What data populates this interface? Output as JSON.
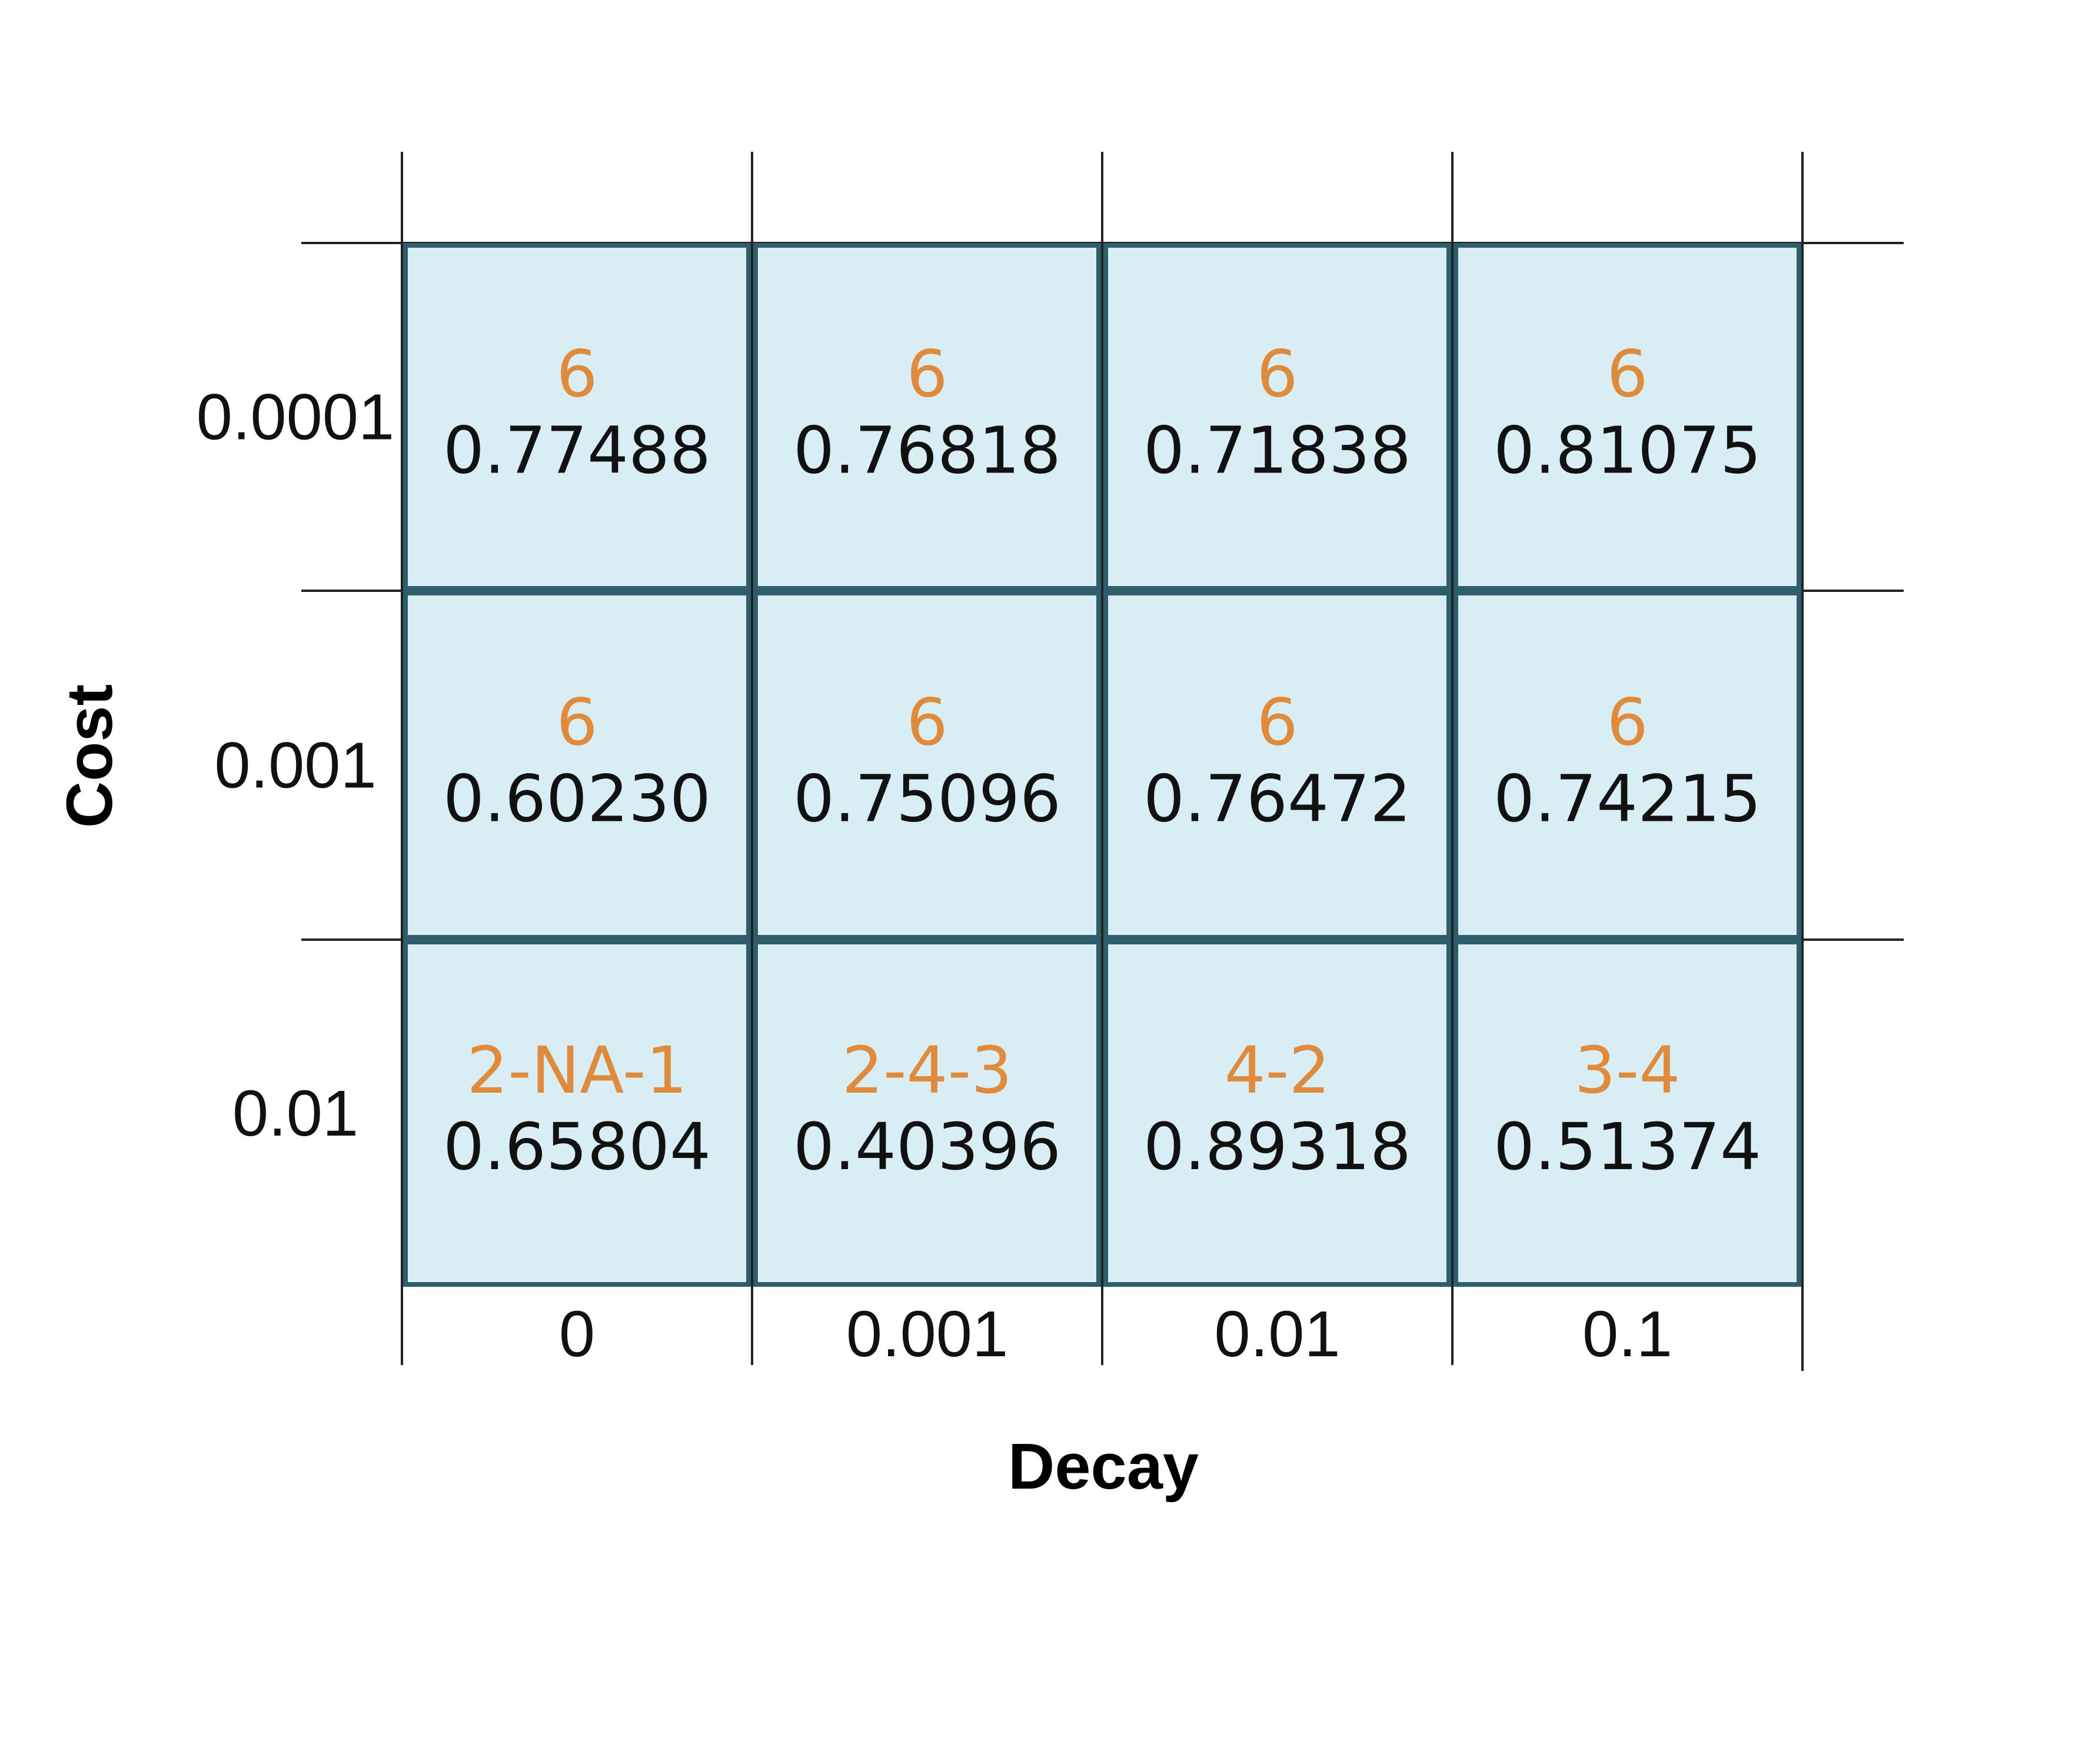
{
  "chart_data": {
    "type": "table",
    "xlabel": "Decay",
    "ylabel": "Cost",
    "x_categories": [
      "0",
      "0.001",
      "0.01",
      "0.1"
    ],
    "y_categories": [
      "0.0001",
      "0.001",
      "0.01"
    ],
    "cells": [
      [
        {
          "label": "6",
          "value": "0.77488"
        },
        {
          "label": "6",
          "value": "0.76818"
        },
        {
          "label": "6",
          "value": "0.71838"
        },
        {
          "label": "6",
          "value": "0.81075"
        }
      ],
      [
        {
          "label": "6",
          "value": "0.60230"
        },
        {
          "label": "6",
          "value": "0.75096"
        },
        {
          "label": "6",
          "value": "0.76472"
        },
        {
          "label": "6",
          "value": "0.74215"
        }
      ],
      [
        {
          "label": "2-NA-1",
          "value": "0.65804"
        },
        {
          "label": "2-4-3",
          "value": "0.40396"
        },
        {
          "label": "4-2",
          "value": "0.89318"
        },
        {
          "label": "3-4",
          "value": "0.51374"
        }
      ]
    ],
    "colors": {
      "cell_fill": "#d9eef4",
      "cell_border": "#2e5e6c",
      "label_text": "#e08a3c",
      "value_text": "#111111"
    }
  }
}
